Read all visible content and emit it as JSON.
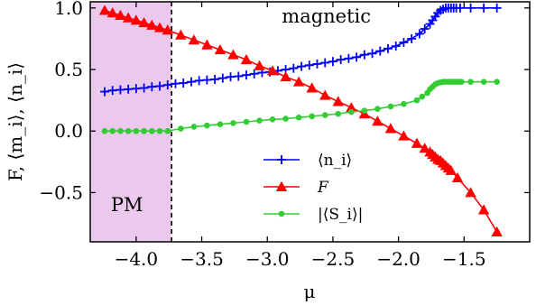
{
  "chart_data": {
    "type": "line",
    "xlabel": "μ",
    "ylabel": "F, ⟨m_i⟩, ⟨n_i⟩",
    "xlim": [
      -4.35,
      -1.0
    ],
    "ylim": [
      -0.9,
      1.05
    ],
    "xticks": [
      -4.0,
      -3.5,
      -3.0,
      -2.5,
      -2.0,
      -1.5
    ],
    "xtick_labels": [
      "−4.0",
      "−3.5",
      "−3.0",
      "−2.5",
      "−2.0",
      "−1.5"
    ],
    "yticks": [
      -0.5,
      0.0,
      0.5,
      1.0
    ],
    "ytick_labels": [
      "−0.5",
      "0.0",
      "0.5",
      "1.0"
    ],
    "grid": false,
    "legend_position": "center",
    "annotations": [
      {
        "text": "magnetic",
        "x": -2.55,
        "y": 0.88
      },
      {
        "text": "PM",
        "x": -4.07,
        "y": -0.65
      }
    ],
    "regions": [
      {
        "name": "PM",
        "x_start": -4.35,
        "x_end": -3.73,
        "color": "#ebc9ec"
      }
    ],
    "vlines": [
      {
        "x": -3.73,
        "style": "dashed",
        "color": "#000000"
      }
    ],
    "series": [
      {
        "name": "⟨n_i⟩",
        "color": "#0000ff",
        "marker": "plus",
        "x": [
          -4.24,
          -4.18,
          -4.12,
          -4.06,
          -4.0,
          -3.94,
          -3.88,
          -3.82,
          -3.76,
          -3.7,
          -3.64,
          -3.58,
          -3.52,
          -3.46,
          -3.4,
          -3.34,
          -3.28,
          -3.22,
          -3.16,
          -3.1,
          -3.04,
          -2.98,
          -2.92,
          -2.86,
          -2.8,
          -2.74,
          -2.68,
          -2.62,
          -2.56,
          -2.5,
          -2.44,
          -2.38,
          -2.32,
          -2.26,
          -2.2,
          -2.14,
          -2.08,
          -2.02,
          -1.96,
          -1.9,
          -1.84,
          -1.8,
          -1.76,
          -1.74,
          -1.72,
          -1.7,
          -1.68,
          -1.66,
          -1.64,
          -1.62,
          -1.6,
          -1.58,
          -1.56,
          -1.53,
          -1.45,
          -1.35,
          -1.25
        ],
        "values": [
          0.32,
          0.33,
          0.335,
          0.34,
          0.345,
          0.35,
          0.36,
          0.365,
          0.375,
          0.385,
          0.39,
          0.4,
          0.41,
          0.415,
          0.42,
          0.43,
          0.44,
          0.445,
          0.455,
          0.465,
          0.475,
          0.48,
          0.49,
          0.5,
          0.51,
          0.525,
          0.535,
          0.545,
          0.555,
          0.565,
          0.58,
          0.59,
          0.6,
          0.62,
          0.63,
          0.65,
          0.67,
          0.69,
          0.72,
          0.75,
          0.79,
          0.83,
          0.87,
          0.9,
          0.93,
          0.96,
          0.98,
          0.99,
          1.0,
          1.0,
          1.0,
          1.0,
          1.0,
          1.0,
          1.0,
          1.0,
          1.0
        ]
      },
      {
        "name": "F",
        "color": "#ff0000",
        "marker": "triangle",
        "x": [
          -4.24,
          -4.18,
          -4.12,
          -4.06,
          -4.0,
          -3.94,
          -3.88,
          -3.82,
          -3.76,
          -3.66,
          -3.56,
          -3.46,
          -3.36,
          -3.26,
          -3.16,
          -3.06,
          -2.96,
          -2.86,
          -2.76,
          -2.66,
          -2.56,
          -2.46,
          -2.36,
          -2.26,
          -2.16,
          -2.06,
          -1.96,
          -1.86,
          -1.8,
          -1.76,
          -1.74,
          -1.72,
          -1.7,
          -1.68,
          -1.66,
          -1.64,
          -1.62,
          -1.6,
          -1.55,
          -1.45,
          -1.35,
          -1.25
        ],
        "values": [
          0.98,
          0.96,
          0.94,
          0.92,
          0.9,
          0.88,
          0.86,
          0.84,
          0.82,
          0.78,
          0.74,
          0.7,
          0.66,
          0.62,
          0.58,
          0.53,
          0.49,
          0.44,
          0.4,
          0.35,
          0.29,
          0.24,
          0.19,
          0.14,
          0.08,
          0.02,
          -0.04,
          -0.1,
          -0.14,
          -0.17,
          -0.19,
          -0.21,
          -0.23,
          -0.24,
          -0.26,
          -0.28,
          -0.3,
          -0.32,
          -0.38,
          -0.5,
          -0.64,
          -0.82
        ]
      },
      {
        "name": "|⟨S_i⟩|",
        "color": "#33cc33",
        "marker": "circle",
        "x": [
          -4.24,
          -4.18,
          -4.12,
          -4.06,
          -4.0,
          -3.94,
          -3.88,
          -3.82,
          -3.76,
          -3.66,
          -3.56,
          -3.46,
          -3.36,
          -3.26,
          -3.16,
          -3.06,
          -2.96,
          -2.86,
          -2.76,
          -2.66,
          -2.56,
          -2.46,
          -2.36,
          -2.26,
          -2.16,
          -2.06,
          -1.96,
          -1.86,
          -1.82,
          -1.78,
          -1.76,
          -1.74,
          -1.72,
          -1.7,
          -1.68,
          -1.66,
          -1.64,
          -1.62,
          -1.6,
          -1.58,
          -1.56,
          -1.54,
          -1.52,
          -1.45,
          -1.35,
          -1.25
        ],
        "values": [
          0.0,
          0.0,
          0.0,
          0.0,
          0.0,
          0.0,
          0.0,
          0.0,
          0.0,
          0.02,
          0.035,
          0.045,
          0.055,
          0.065,
          0.075,
          0.085,
          0.095,
          0.1,
          0.11,
          0.12,
          0.13,
          0.14,
          0.155,
          0.165,
          0.18,
          0.2,
          0.22,
          0.25,
          0.28,
          0.31,
          0.34,
          0.36,
          0.38,
          0.39,
          0.395,
          0.4,
          0.4,
          0.4,
          0.4,
          0.4,
          0.4,
          0.4,
          0.4,
          0.4,
          0.4,
          0.4
        ]
      }
    ]
  }
}
